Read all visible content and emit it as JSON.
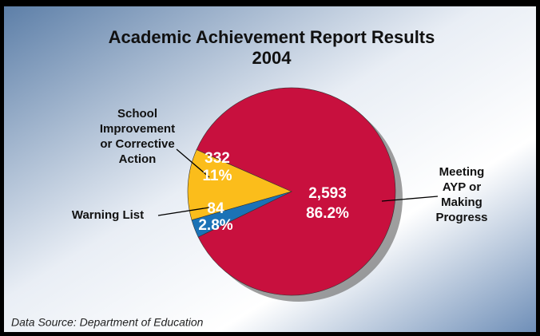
{
  "chart_data": {
    "type": "pie",
    "title": "Academic Achievement Report Results",
    "subtitle": "2004",
    "categories": [
      [
        "Meeting",
        "AYP or",
        "Making",
        "Progress"
      ],
      [
        "School",
        "Improvement",
        "or Corrective",
        "Action"
      ],
      [
        "Warning List"
      ]
    ],
    "values": [
      2593,
      332,
      84
    ],
    "value_labels": [
      "2,593",
      "332",
      "84"
    ],
    "percent_labels": [
      "86.2%",
      "11%",
      "2.8%"
    ],
    "colors": [
      "#c8103e",
      "#fbbd1b",
      "#1b72b6"
    ],
    "source": "Data Source: Department of Education"
  }
}
